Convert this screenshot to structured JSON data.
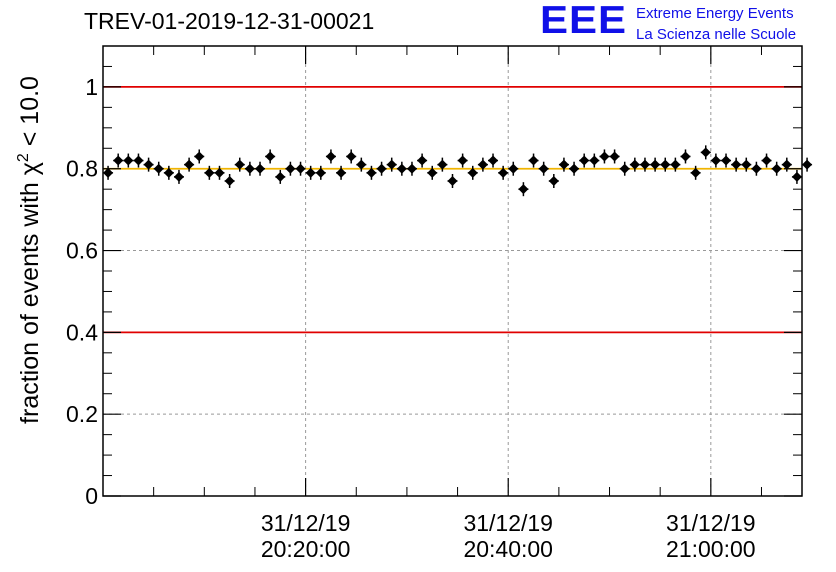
{
  "title": "TREV-01-2019-12-31-00021",
  "logo": {
    "mark": "EEE",
    "line1": "Extreme Energy Events",
    "line2": "La Scienza nelle Scuole"
  },
  "chart_data": {
    "type": "scatter",
    "ylabel": "fraction of events with χ² < 10.0",
    "ylabel_parts": {
      "prefix": "fraction of events with ",
      "symbol": "χ",
      "superscript": "2",
      "suffix": " < 10.0"
    },
    "xlabel": "",
    "ylim": [
      0,
      1.1
    ],
    "y_ticks": [
      "0",
      "0.2",
      "0.4",
      "0.6",
      "0.8",
      "1"
    ],
    "y_tick_values": [
      0,
      0.2,
      0.4,
      0.6,
      0.8,
      1.0
    ],
    "x_major_ticks": [
      {
        "t": "20:20:00",
        "date": "31/12/19",
        "time": "20:20:00"
      },
      {
        "t": "20:40:00",
        "date": "31/12/19",
        "time": "20:40:00"
      },
      {
        "t": "21:00:00",
        "date": "31/12/19",
        "time": "21:00:00"
      }
    ],
    "xlim": [
      "20:00:00",
      "21:09:00"
    ],
    "grid": true,
    "reference_lines": [
      {
        "value": 1.0,
        "color": "#e00000"
      },
      {
        "value": 0.4,
        "color": "#e00000"
      },
      {
        "value": 0.8,
        "color": "#f0b400"
      }
    ],
    "marker_color": "#000000",
    "series": [
      {
        "points": [
          {
            "t": "20:00:30",
            "y": 0.79
          },
          {
            "t": "20:01:30",
            "y": 0.82
          },
          {
            "t": "20:02:30",
            "y": 0.82
          },
          {
            "t": "20:03:30",
            "y": 0.82
          },
          {
            "t": "20:04:30",
            "y": 0.81
          },
          {
            "t": "20:05:30",
            "y": 0.8
          },
          {
            "t": "20:06:30",
            "y": 0.79
          },
          {
            "t": "20:07:30",
            "y": 0.78
          },
          {
            "t": "20:08:30",
            "y": 0.81
          },
          {
            "t": "20:09:30",
            "y": 0.83
          },
          {
            "t": "20:10:30",
            "y": 0.79
          },
          {
            "t": "20:11:30",
            "y": 0.79
          },
          {
            "t": "20:12:30",
            "y": 0.77
          },
          {
            "t": "20:13:30",
            "y": 0.81
          },
          {
            "t": "20:14:30",
            "y": 0.8
          },
          {
            "t": "20:15:30",
            "y": 0.8
          },
          {
            "t": "20:16:30",
            "y": 0.83
          },
          {
            "t": "20:17:30",
            "y": 0.78
          },
          {
            "t": "20:18:30",
            "y": 0.8
          },
          {
            "t": "20:19:30",
            "y": 0.8
          },
          {
            "t": "20:20:30",
            "y": 0.79
          },
          {
            "t": "20:21:30",
            "y": 0.79
          },
          {
            "t": "20:22:30",
            "y": 0.83
          },
          {
            "t": "20:23:30",
            "y": 0.79
          },
          {
            "t": "20:24:30",
            "y": 0.83
          },
          {
            "t": "20:25:30",
            "y": 0.81
          },
          {
            "t": "20:26:30",
            "y": 0.79
          },
          {
            "t": "20:27:30",
            "y": 0.8
          },
          {
            "t": "20:28:30",
            "y": 0.81
          },
          {
            "t": "20:29:30",
            "y": 0.8
          },
          {
            "t": "20:30:30",
            "y": 0.8
          },
          {
            "t": "20:31:30",
            "y": 0.82
          },
          {
            "t": "20:32:30",
            "y": 0.79
          },
          {
            "t": "20:33:30",
            "y": 0.81
          },
          {
            "t": "20:34:30",
            "y": 0.77
          },
          {
            "t": "20:35:30",
            "y": 0.82
          },
          {
            "t": "20:36:30",
            "y": 0.79
          },
          {
            "t": "20:37:30",
            "y": 0.81
          },
          {
            "t": "20:38:30",
            "y": 0.82
          },
          {
            "t": "20:39:30",
            "y": 0.79
          },
          {
            "t": "20:40:30",
            "y": 0.8
          },
          {
            "t": "20:41:30",
            "y": 0.75
          },
          {
            "t": "20:42:30",
            "y": 0.82
          },
          {
            "t": "20:43:30",
            "y": 0.8
          },
          {
            "t": "20:44:30",
            "y": 0.77
          },
          {
            "t": "20:45:30",
            "y": 0.81
          },
          {
            "t": "20:46:30",
            "y": 0.8
          },
          {
            "t": "20:47:30",
            "y": 0.82
          },
          {
            "t": "20:48:30",
            "y": 0.82
          },
          {
            "t": "20:49:30",
            "y": 0.83
          },
          {
            "t": "20:50:30",
            "y": 0.83
          },
          {
            "t": "20:51:30",
            "y": 0.8
          },
          {
            "t": "20:52:30",
            "y": 0.81
          },
          {
            "t": "20:53:30",
            "y": 0.81
          },
          {
            "t": "20:54:30",
            "y": 0.81
          },
          {
            "t": "20:55:30",
            "y": 0.81
          },
          {
            "t": "20:56:30",
            "y": 0.81
          },
          {
            "t": "20:57:30",
            "y": 0.83
          },
          {
            "t": "20:58:30",
            "y": 0.79
          },
          {
            "t": "20:59:30",
            "y": 0.84
          },
          {
            "t": "21:00:30",
            "y": 0.82
          },
          {
            "t": "21:01:30",
            "y": 0.82
          },
          {
            "t": "21:02:30",
            "y": 0.81
          },
          {
            "t": "21:03:30",
            "y": 0.81
          },
          {
            "t": "21:04:30",
            "y": 0.8
          },
          {
            "t": "21:05:30",
            "y": 0.82
          },
          {
            "t": "21:06:30",
            "y": 0.8
          },
          {
            "t": "21:07:30",
            "y": 0.81
          },
          {
            "t": "21:08:30",
            "y": 0.78
          },
          {
            "t": "21:09:30",
            "y": 0.81
          }
        ]
      }
    ]
  }
}
